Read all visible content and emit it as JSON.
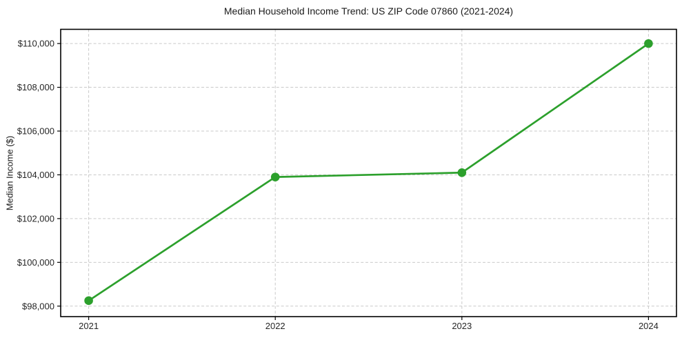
{
  "chart_data": {
    "type": "line",
    "title": "Median Household Income Trend: US ZIP Code 07860 (2021-2024)",
    "xlabel": "",
    "ylabel": "Median Income ($)",
    "x": [
      2021,
      2022,
      2023,
      2024
    ],
    "x_tick_labels": [
      "2021",
      "2022",
      "2023",
      "2024"
    ],
    "values": [
      98250,
      103900,
      104100,
      110000
    ],
    "y_ticks": [
      98000,
      100000,
      102000,
      104000,
      106000,
      108000,
      110000
    ],
    "y_tick_labels": [
      "$98,000",
      "$100,000",
      "$102,000",
      "$104,000",
      "$106,000",
      "$108,000",
      "$110,000"
    ],
    "xlim": [
      2020.85,
      2024.15
    ],
    "ylim": [
      97520,
      110650
    ],
    "grid": true,
    "grid_style": "dashed",
    "legend": false,
    "colors": {
      "line": "#2ca02c",
      "marker": "#2ca02c",
      "grid": "#c9c9c9",
      "spine": "#000000",
      "tick": "#000000",
      "text": "#262626",
      "background": "#ffffff"
    }
  }
}
